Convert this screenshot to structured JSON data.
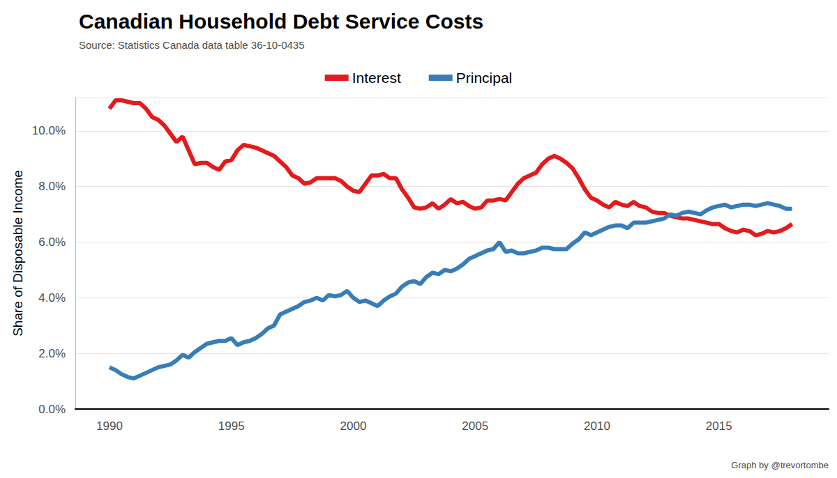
{
  "chart_data": {
    "type": "line",
    "title": "Canadian Household Debt Service Costs",
    "subtitle": "Source: Statistics Canada data table 36-10-0435",
    "y_label": "Share of Disposable Income",
    "caption": "Graph by @trevortombe",
    "x": [
      1990,
      1990.25,
      1990.5,
      1990.75,
      1991,
      1991.25,
      1991.5,
      1991.75,
      1992,
      1992.25,
      1992.5,
      1992.75,
      1993,
      1993.25,
      1993.5,
      1993.75,
      1994,
      1994.25,
      1994.5,
      1994.75,
      1995,
      1995.25,
      1995.5,
      1995.75,
      1996,
      1996.25,
      1996.5,
      1996.75,
      1997,
      1997.25,
      1997.5,
      1997.75,
      1998,
      1998.25,
      1998.5,
      1998.75,
      1999,
      1999.25,
      1999.5,
      1999.75,
      2000,
      2000.25,
      2000.5,
      2000.75,
      2001,
      2001.25,
      2001.5,
      2001.75,
      2002,
      2002.25,
      2002.5,
      2002.75,
      2003,
      2003.25,
      2003.5,
      2003.75,
      2004,
      2004.25,
      2004.5,
      2004.75,
      2005,
      2005.25,
      2005.5,
      2005.75,
      2006,
      2006.25,
      2006.5,
      2006.75,
      2007,
      2007.25,
      2007.5,
      2007.75,
      2008,
      2008.25,
      2008.5,
      2008.75,
      2009,
      2009.25,
      2009.5,
      2009.75,
      2010,
      2010.25,
      2010.5,
      2010.75,
      2011,
      2011.25,
      2011.5,
      2011.75,
      2012,
      2012.25,
      2012.5,
      2012.75,
      2013,
      2013.25,
      2013.5,
      2013.75,
      2014,
      2014.25,
      2014.5,
      2014.75,
      2015,
      2015.25,
      2015.5,
      2015.75,
      2016,
      2016.25,
      2016.5,
      2016.75,
      2017,
      2017.25,
      2017.5,
      2017.75,
      2018
    ],
    "series": [
      {
        "name": "Interest",
        "color": "#e41a1c",
        "values": [
          10.8,
          11.1,
          11.1,
          11.05,
          11.0,
          11.0,
          10.8,
          10.5,
          10.4,
          10.2,
          9.9,
          9.6,
          9.8,
          9.3,
          8.8,
          8.85,
          8.85,
          8.7,
          8.6,
          8.9,
          8.95,
          9.3,
          9.5,
          9.45,
          9.4,
          9.3,
          9.2,
          9.1,
          8.9,
          8.7,
          8.4,
          8.3,
          8.1,
          8.15,
          8.3,
          8.3,
          8.3,
          8.3,
          8.2,
          8.0,
          7.85,
          7.8,
          8.1,
          8.4,
          8.4,
          8.45,
          8.3,
          8.3,
          7.9,
          7.6,
          7.25,
          7.2,
          7.25,
          7.4,
          7.2,
          7.35,
          7.55,
          7.4,
          7.45,
          7.3,
          7.2,
          7.25,
          7.5,
          7.5,
          7.55,
          7.5,
          7.8,
          8.1,
          8.3,
          8.4,
          8.5,
          8.8,
          9.0,
          9.1,
          9.0,
          8.85,
          8.65,
          8.3,
          7.9,
          7.6,
          7.5,
          7.35,
          7.25,
          7.45,
          7.35,
          7.3,
          7.45,
          7.3,
          7.25,
          7.1,
          7.05,
          7.05,
          6.95,
          6.9,
          6.85,
          6.85,
          6.8,
          6.75,
          6.7,
          6.65,
          6.65,
          6.5,
          6.4,
          6.35,
          6.45,
          6.4,
          6.25,
          6.3,
          6.4,
          6.35,
          6.4,
          6.5,
          6.65
        ]
      },
      {
        "name": "Principal",
        "color": "#377eb8",
        "values": [
          1.5,
          1.4,
          1.25,
          1.15,
          1.1,
          1.2,
          1.3,
          1.4,
          1.5,
          1.55,
          1.6,
          1.75,
          1.95,
          1.85,
          2.05,
          2.2,
          2.35,
          2.4,
          2.45,
          2.45,
          2.55,
          2.3,
          2.4,
          2.45,
          2.55,
          2.7,
          2.9,
          3.0,
          3.4,
          3.5,
          3.6,
          3.7,
          3.85,
          3.9,
          4.0,
          3.9,
          4.1,
          4.05,
          4.1,
          4.25,
          4.0,
          3.85,
          3.9,
          3.8,
          3.7,
          3.9,
          4.05,
          4.15,
          4.4,
          4.55,
          4.6,
          4.5,
          4.75,
          4.9,
          4.85,
          5.0,
          4.95,
          5.05,
          5.2,
          5.4,
          5.5,
          5.6,
          5.7,
          5.75,
          6.0,
          5.65,
          5.7,
          5.6,
          5.6,
          5.65,
          5.7,
          5.8,
          5.8,
          5.75,
          5.75,
          5.75,
          5.95,
          6.1,
          6.35,
          6.25,
          6.35,
          6.45,
          6.55,
          6.6,
          6.6,
          6.5,
          6.7,
          6.7,
          6.7,
          6.75,
          6.8,
          6.85,
          7.0,
          6.95,
          7.05,
          7.1,
          7.05,
          7.0,
          7.15,
          7.25,
          7.3,
          7.35,
          7.25,
          7.3,
          7.35,
          7.35,
          7.3,
          7.35,
          7.4,
          7.35,
          7.3,
          7.2,
          7.2
        ]
      }
    ],
    "xlim": [
      1988.6,
      2019.5
    ],
    "xticks": [
      1990,
      1995,
      2000,
      2005,
      2010,
      2015
    ],
    "ylim": [
      0,
      11.2
    ],
    "yticks": [
      {
        "value": 0,
        "label": "0.0%"
      },
      {
        "value": 2,
        "label": "2.0%"
      },
      {
        "value": 4,
        "label": "4.0%"
      },
      {
        "value": 6,
        "label": "6.0%"
      },
      {
        "value": 8,
        "label": "8.0%"
      },
      {
        "value": 10,
        "label": "10.0%"
      }
    ],
    "grid": true,
    "legend": "top"
  }
}
